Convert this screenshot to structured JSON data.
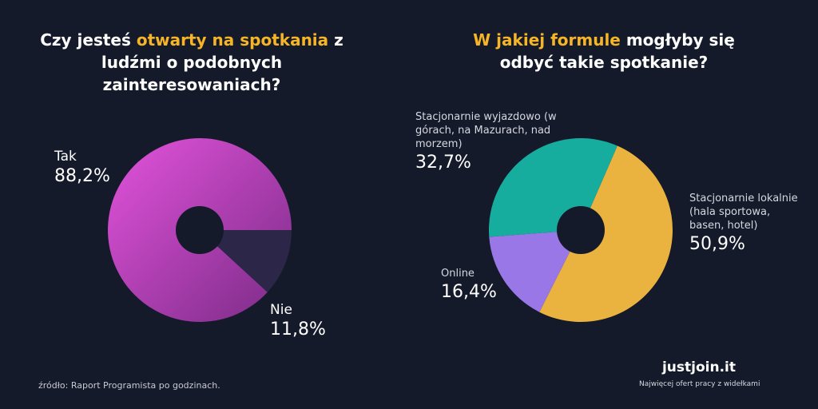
{
  "chart_data": [
    {
      "type": "pie",
      "title_parts": [
        "Czy jesteś ",
        "otwarty na spotkania",
        " z ludźmi o podobnych zainteresowaniach?"
      ],
      "slices": [
        {
          "label": "Tak",
          "value": 88.2,
          "value_label": "88,2%",
          "color": "#c63fbf"
        },
        {
          "label": "Nie",
          "value": 11.8,
          "value_label": "11,8%",
          "color": "#2c2748"
        }
      ]
    },
    {
      "type": "pie",
      "title_parts": [
        "W jakiej formule",
        " mogłyby się odbyć takie spotkanie?"
      ],
      "slices": [
        {
          "label": "Stacjonarnie lokalnie (hala sportowa, basen, hotel)",
          "value": 50.9,
          "value_label": "50,9%",
          "color": "#eab33f"
        },
        {
          "label": "Online",
          "value": 16.4,
          "value_label": "16,4%",
          "color": "#9a77e6"
        },
        {
          "label": "Stacjonarnie wyjazdowo (w górach, na Mazurach, nad morzem)",
          "value": 32.7,
          "value_label": "32,7%",
          "color": "#16ad9f"
        }
      ]
    }
  ],
  "source": "źródło: Raport Programista po godzinach.",
  "brand": {
    "logo": "justjoin.it",
    "tagline": "Najwięcej ofert pracy z widełkami"
  },
  "colors": {
    "background": "#151a2b",
    "highlight": "#f6b526"
  }
}
